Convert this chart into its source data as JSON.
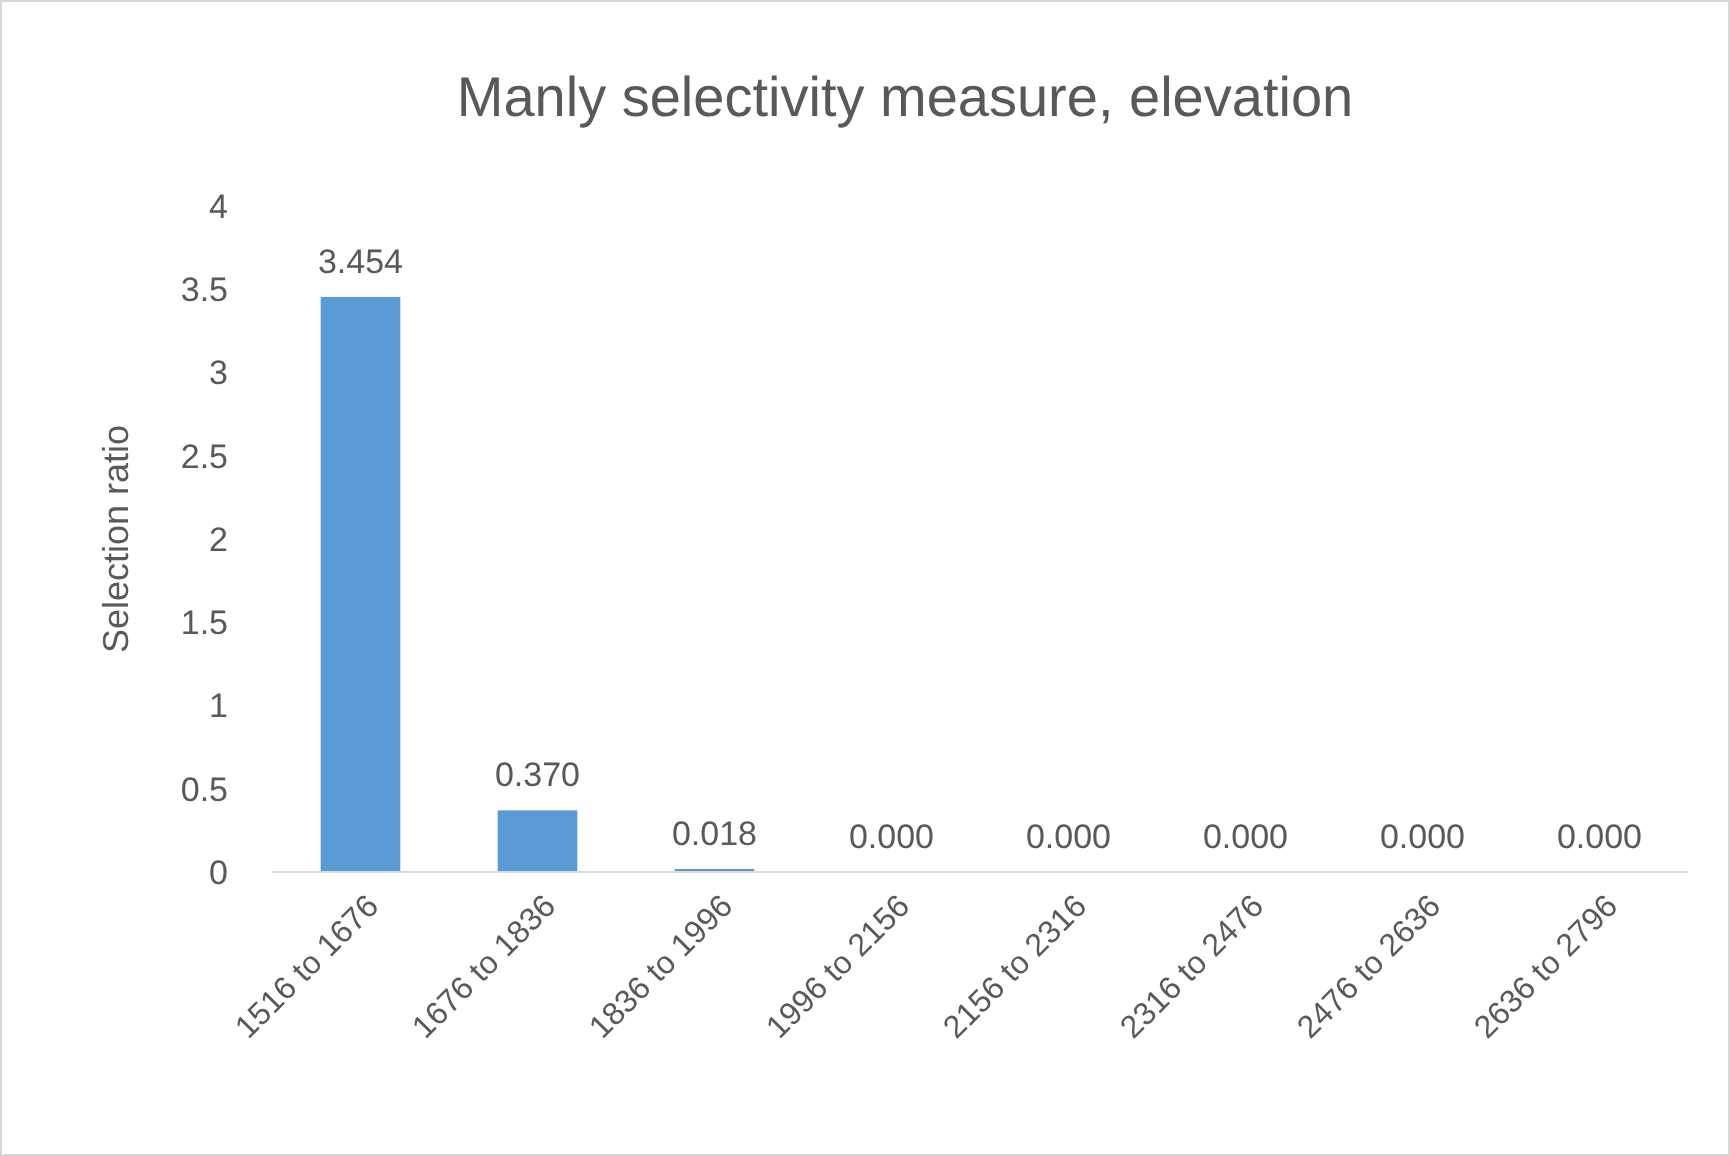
{
  "chart_data": {
    "type": "bar",
    "title": "Manly selectivity measure, elevation",
    "ylabel": "Selection ratio",
    "categories": [
      "1516 to 1676",
      "1676 to 1836",
      "1836 to 1996",
      "1996 to 2156",
      "2156 to 2316",
      "2316 to 2476",
      "2476 to 2636",
      "2636 to 2796"
    ],
    "values": [
      3.454,
      0.37,
      0.018,
      0,
      0,
      0,
      0,
      0
    ],
    "value_labels": [
      "3.454",
      "0.370",
      "0.018",
      "0.000",
      "0.000",
      "0.000",
      "0.000",
      "0.000"
    ],
    "color": "#5b9bd5",
    "ylim": [
      0,
      4
    ],
    "yticks": [
      0,
      0.5,
      1,
      1.5,
      2,
      2.5,
      3,
      3.5,
      4
    ],
    "grid": false
  }
}
